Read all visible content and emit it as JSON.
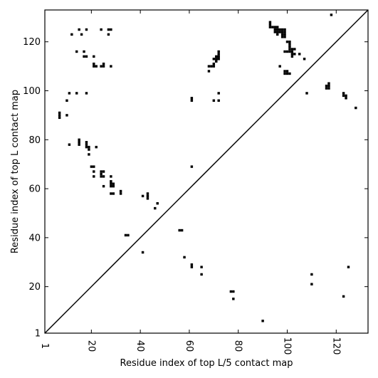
{
  "chart_data": {
    "type": "scatter",
    "xlabel": "Residue index of top L/5 contact map",
    "ylabel": "Residue index of top L contact map",
    "xlim": [
      1,
      133
    ],
    "ylim": [
      1,
      133
    ],
    "x_ticks": [
      {
        "value": 1,
        "label": "1"
      },
      {
        "value": 20,
        "label": "20"
      },
      {
        "value": 40,
        "label": "40"
      },
      {
        "value": 60,
        "label": "60"
      },
      {
        "value": 80,
        "label": "80"
      },
      {
        "value": 100,
        "label": "100"
      },
      {
        "value": 120,
        "label": "120"
      }
    ],
    "y_ticks": [
      {
        "value": 1,
        "label": "1"
      },
      {
        "value": 20,
        "label": "20"
      },
      {
        "value": 40,
        "label": "40"
      },
      {
        "value": 60,
        "label": "60"
      },
      {
        "value": 80,
        "label": "80"
      },
      {
        "value": 100,
        "label": "100"
      },
      {
        "value": 120,
        "label": "120"
      }
    ],
    "diagonal": true,
    "mark_color": "#000000",
    "series": [
      {
        "points": [
          [
            12,
            123
          ],
          [
            15,
            125
          ],
          [
            16,
            123
          ],
          [
            18,
            125
          ],
          [
            24,
            125
          ],
          [
            27,
            123
          ],
          [
            27,
            125
          ],
          [
            28,
            125
          ],
          [
            14,
            116
          ],
          [
            17,
            116
          ],
          [
            17,
            114
          ],
          [
            18,
            114
          ],
          [
            21,
            114
          ],
          [
            21,
            111
          ],
          [
            21,
            110
          ],
          [
            22,
            110
          ],
          [
            24,
            110
          ],
          [
            25,
            110
          ],
          [
            25,
            111
          ],
          [
            28,
            110
          ],
          [
            11,
            99
          ],
          [
            14,
            99
          ],
          [
            18,
            99
          ],
          [
            10,
            96
          ],
          [
            7,
            91
          ],
          [
            7,
            90
          ],
          [
            7,
            89
          ],
          [
            10,
            90
          ],
          [
            11,
            78
          ],
          [
            15,
            80
          ],
          [
            15,
            79
          ],
          [
            15,
            78
          ],
          [
            18,
            79
          ],
          [
            18,
            78
          ],
          [
            18,
            77
          ],
          [
            19,
            77
          ],
          [
            19,
            76
          ],
          [
            19,
            74
          ],
          [
            22,
            77
          ],
          [
            20,
            69
          ],
          [
            21,
            69
          ],
          [
            21,
            67
          ],
          [
            21,
            65
          ],
          [
            24,
            67
          ],
          [
            24,
            66
          ],
          [
            24,
            65
          ],
          [
            25,
            67
          ],
          [
            25,
            65
          ],
          [
            25,
            61
          ],
          [
            28,
            65
          ],
          [
            28,
            63
          ],
          [
            28,
            62
          ],
          [
            28,
            61
          ],
          [
            29,
            62
          ],
          [
            29,
            61
          ],
          [
            28,
            58
          ],
          [
            29,
            58
          ],
          [
            32,
            59
          ],
          [
            32,
            58
          ],
          [
            34,
            41
          ],
          [
            35,
            41
          ],
          [
            41,
            57
          ],
          [
            43,
            58
          ],
          [
            43,
            57
          ],
          [
            43,
            56
          ],
          [
            46,
            52
          ],
          [
            47,
            54
          ],
          [
            41,
            34
          ],
          [
            56,
            43
          ],
          [
            57,
            43
          ],
          [
            58,
            32
          ],
          [
            61,
            29
          ],
          [
            61,
            28
          ],
          [
            65,
            28
          ],
          [
            65,
            25
          ],
          [
            61,
            97
          ],
          [
            61,
            96
          ],
          [
            61,
            69
          ],
          [
            68,
            110
          ],
          [
            69,
            110
          ],
          [
            68,
            108
          ],
          [
            70,
            113
          ],
          [
            70,
            111
          ],
          [
            70,
            110
          ],
          [
            71,
            114
          ],
          [
            71,
            113
          ],
          [
            71,
            112
          ],
          [
            72,
            116
          ],
          [
            72,
            115
          ],
          [
            72,
            114
          ],
          [
            72,
            113
          ],
          [
            70,
            96
          ],
          [
            72,
            99
          ],
          [
            72,
            96
          ],
          [
            77,
            18
          ],
          [
            78,
            18
          ],
          [
            78,
            15
          ],
          [
            90,
            6
          ],
          [
            93,
            128
          ],
          [
            93,
            127
          ],
          [
            93,
            126
          ],
          [
            94,
            126
          ],
          [
            95,
            126
          ],
          [
            95,
            125
          ],
          [
            95,
            124
          ],
          [
            96,
            126
          ],
          [
            96,
            125
          ],
          [
            96,
            124
          ],
          [
            96,
            123
          ],
          [
            97,
            125
          ],
          [
            97,
            124
          ],
          [
            97,
            110
          ],
          [
            98,
            125
          ],
          [
            98,
            124
          ],
          [
            98,
            123
          ],
          [
            98,
            122
          ],
          [
            99,
            125
          ],
          [
            99,
            124
          ],
          [
            99,
            123
          ],
          [
            99,
            122
          ],
          [
            100,
            120
          ],
          [
            101,
            120
          ],
          [
            101,
            119
          ],
          [
            101,
            118
          ],
          [
            101,
            117
          ],
          [
            102,
            117
          ],
          [
            102,
            116
          ],
          [
            102,
            115
          ],
          [
            102,
            114
          ],
          [
            103,
            117
          ],
          [
            103,
            115
          ],
          [
            99,
            116
          ],
          [
            100,
            116
          ],
          [
            101,
            116
          ],
          [
            105,
            115
          ],
          [
            107,
            113
          ],
          [
            99,
            108
          ],
          [
            99,
            107
          ],
          [
            100,
            108
          ],
          [
            100,
            107
          ],
          [
            101,
            107
          ],
          [
            108,
            99
          ],
          [
            110,
            25
          ],
          [
            110,
            21
          ],
          [
            116,
            102
          ],
          [
            116,
            101
          ],
          [
            117,
            103
          ],
          [
            117,
            102
          ],
          [
            117,
            101
          ],
          [
            118,
            131
          ],
          [
            123,
            99
          ],
          [
            123,
            98
          ],
          [
            124,
            98
          ],
          [
            124,
            97
          ],
          [
            128,
            93
          ],
          [
            123,
            16
          ],
          [
            125,
            28
          ]
        ]
      }
    ]
  }
}
